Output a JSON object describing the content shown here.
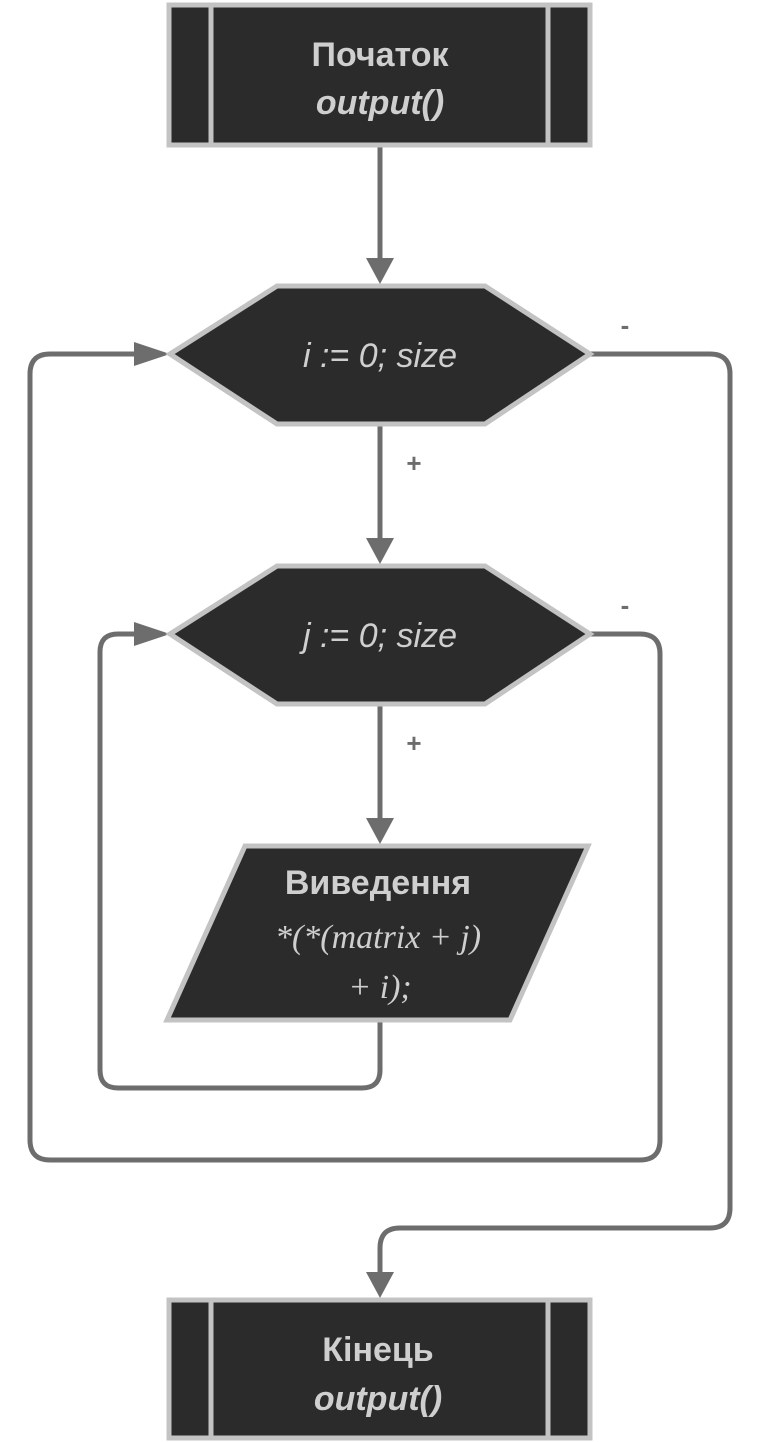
{
  "start": {
    "title": "Початок",
    "subtitle": "output()"
  },
  "outer_loop": {
    "label": "i := 0; size",
    "yes": "+",
    "no": "-"
  },
  "inner_loop": {
    "label": "j := 0; size",
    "yes": "+",
    "no": "-"
  },
  "output_block": {
    "title": "Виведення",
    "expr_line1": "*(*(matrix + j)",
    "expr_line2": "+ i);"
  },
  "end": {
    "title": "Кінець",
    "subtitle": "output()"
  }
}
